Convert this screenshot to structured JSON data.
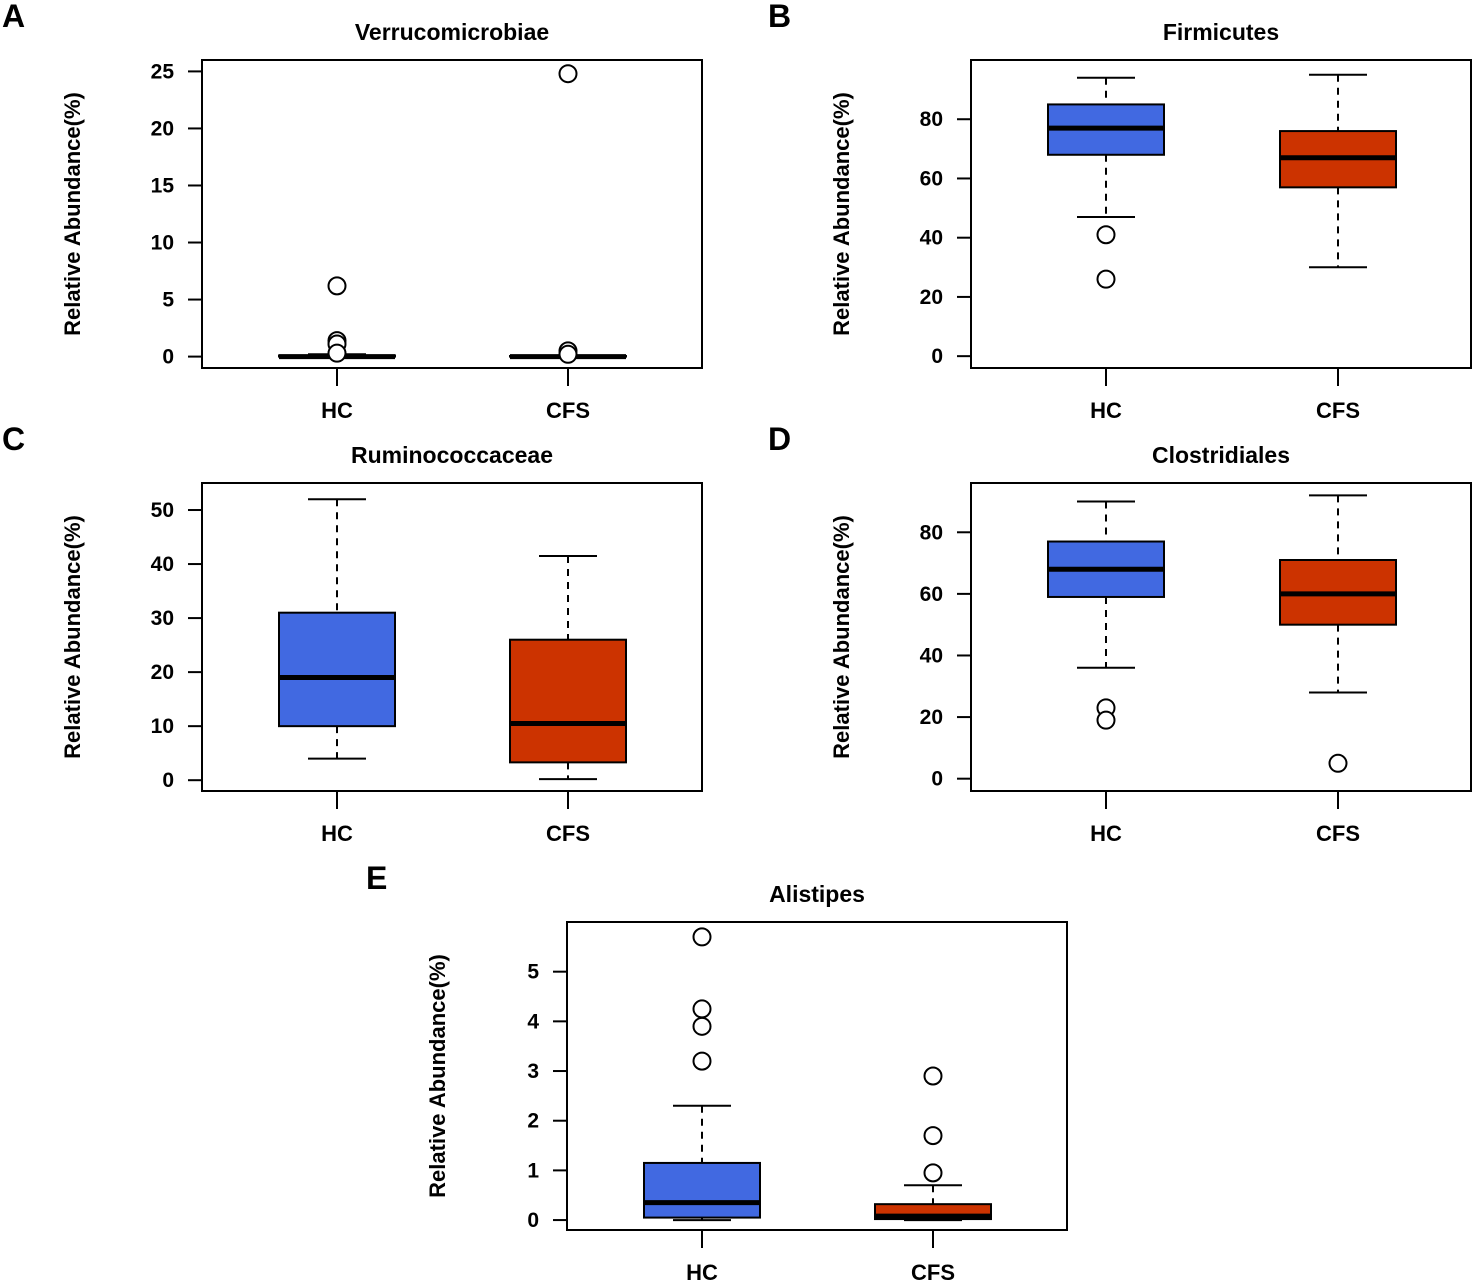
{
  "figure": {
    "panel_letters": [
      "A",
      "B",
      "C",
      "D",
      "E"
    ]
  },
  "colors": {
    "hc": "#4169E1",
    "cfs": "#CC3300",
    "outline": "#000000"
  },
  "chart_data": [
    {
      "panel": "A",
      "type": "box",
      "title": "Verrucomicrobiae",
      "xlabel": "",
      "ylabel": "Relative Abundance(%)",
      "categories": [
        "HC",
        "CFS"
      ],
      "ylim": [
        -1,
        26
      ],
      "yticks": [
        0,
        5,
        10,
        15,
        20,
        25
      ],
      "grid": false,
      "series": [
        {
          "name": "HC",
          "color": "#4169E1",
          "whisker_low": 0,
          "q1": 0,
          "median": 0,
          "q3": 0.1,
          "whisker_high": 0.2,
          "outliers": [
            6.2,
            1.4,
            1.1,
            0.3
          ]
        },
        {
          "name": "CFS",
          "color": "#CC3300",
          "whisker_low": 0,
          "q1": 0,
          "median": 0,
          "q3": 0.05,
          "whisker_high": 0.1,
          "outliers": [
            24.8,
            0.5,
            0.2
          ]
        }
      ]
    },
    {
      "panel": "B",
      "type": "box",
      "title": "Firmicutes",
      "xlabel": "",
      "ylabel": "Relative Abundance(%)",
      "categories": [
        "HC",
        "CFS"
      ],
      "ylim": [
        -4,
        100
      ],
      "yticks": [
        0,
        20,
        40,
        60,
        80
      ],
      "grid": false,
      "series": [
        {
          "name": "HC",
          "color": "#4169E1",
          "whisker_low": 47,
          "q1": 68,
          "median": 77,
          "q3": 85,
          "whisker_high": 94,
          "outliers": [
            41,
            26
          ]
        },
        {
          "name": "CFS",
          "color": "#CC3300",
          "whisker_low": 30,
          "q1": 57,
          "median": 67,
          "q3": 76,
          "whisker_high": 95,
          "outliers": []
        }
      ]
    },
    {
      "panel": "C",
      "type": "box",
      "title": "Ruminococcaceae",
      "xlabel": "",
      "ylabel": "Relative Abundance(%)",
      "categories": [
        "HC",
        "CFS"
      ],
      "ylim": [
        -2,
        55
      ],
      "yticks": [
        0,
        10,
        20,
        30,
        40,
        50
      ],
      "grid": false,
      "series": [
        {
          "name": "HC",
          "color": "#4169E1",
          "whisker_low": 4,
          "q1": 10,
          "median": 19,
          "q3": 31,
          "whisker_high": 52,
          "outliers": []
        },
        {
          "name": "CFS",
          "color": "#CC3300",
          "whisker_low": 0.2,
          "q1": 3.3,
          "median": 10.5,
          "q3": 26,
          "whisker_high": 41.5,
          "outliers": []
        }
      ]
    },
    {
      "panel": "D",
      "type": "box",
      "title": "Clostridiales",
      "xlabel": "",
      "ylabel": "Relative Abundance(%)",
      "categories": [
        "HC",
        "CFS"
      ],
      "ylim": [
        -4,
        96
      ],
      "yticks": [
        0,
        20,
        40,
        60,
        80
      ],
      "grid": false,
      "series": [
        {
          "name": "HC",
          "color": "#4169E1",
          "whisker_low": 36,
          "q1": 59,
          "median": 68,
          "q3": 77,
          "whisker_high": 90,
          "outliers": [
            23,
            19
          ]
        },
        {
          "name": "CFS",
          "color": "#CC3300",
          "whisker_low": 28,
          "q1": 50,
          "median": 60,
          "q3": 71,
          "whisker_high": 92,
          "outliers": [
            5
          ]
        }
      ]
    },
    {
      "panel": "E",
      "type": "box",
      "title": "Alistipes",
      "xlabel": "",
      "ylabel": "Relative Abundance(%)",
      "categories": [
        "HC",
        "CFS"
      ],
      "ylim": [
        -0.2,
        6
      ],
      "yticks": [
        0,
        1,
        2,
        3,
        4,
        5
      ],
      "grid": false,
      "series": [
        {
          "name": "HC",
          "color": "#4169E1",
          "whisker_low": 0,
          "q1": 0.05,
          "median": 0.35,
          "q3": 1.15,
          "whisker_high": 2.3,
          "outliers": [
            5.7,
            4.25,
            3.9,
            3.2
          ]
        },
        {
          "name": "CFS",
          "color": "#CC3300",
          "whisker_low": 0,
          "q1": 0.02,
          "median": 0.08,
          "q3": 0.32,
          "whisker_high": 0.7,
          "outliers": [
            2.9,
            1.7,
            0.95
          ]
        }
      ]
    }
  ]
}
